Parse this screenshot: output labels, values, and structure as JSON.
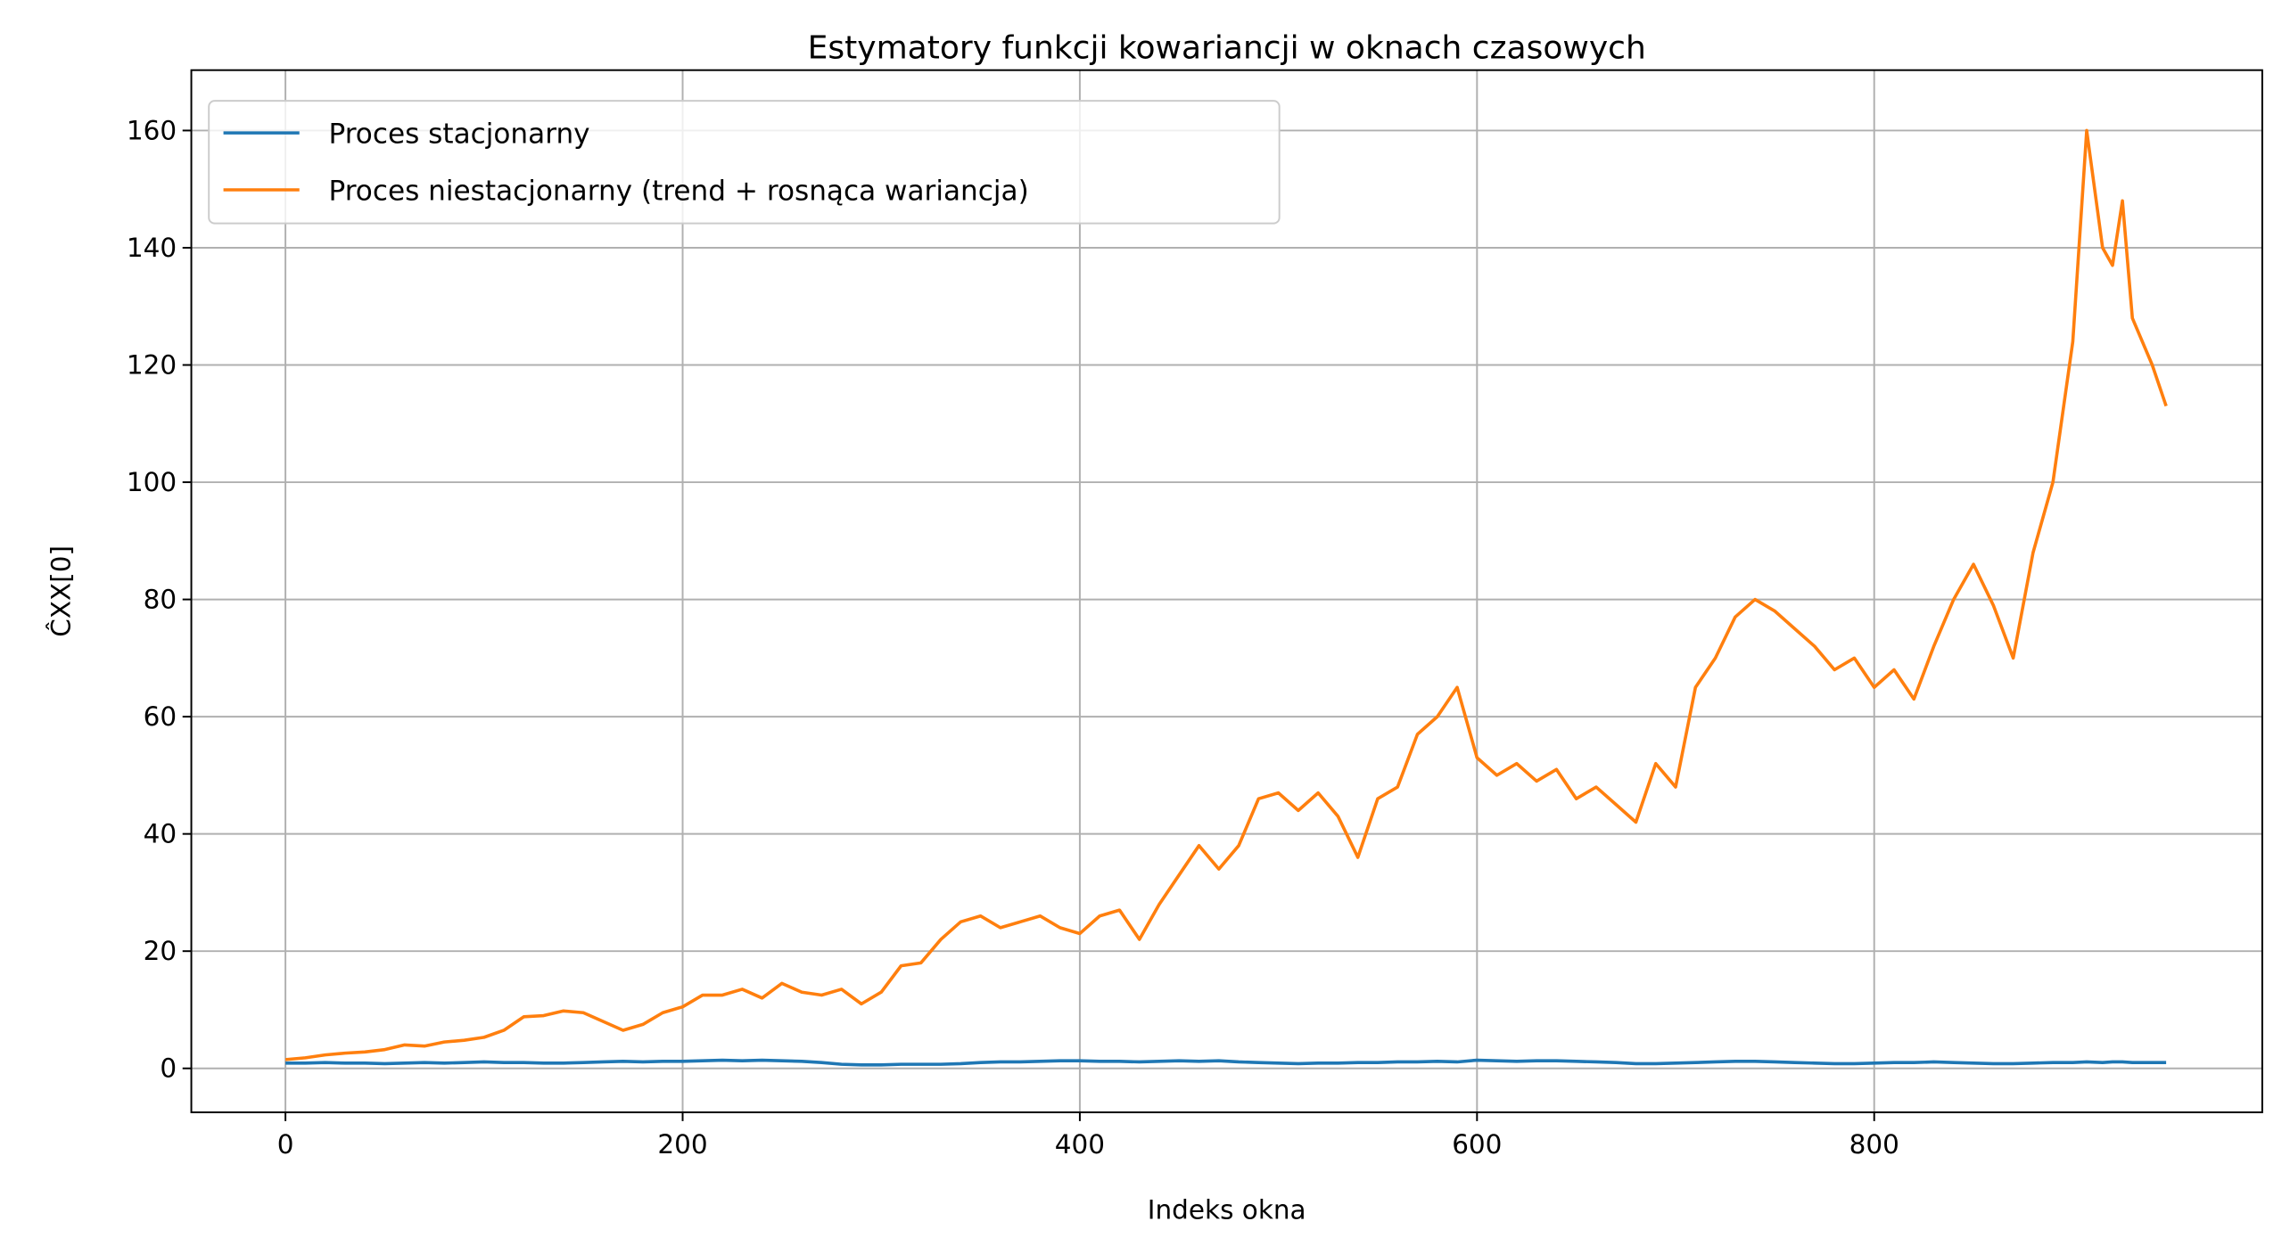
{
  "chart_data": {
    "type": "line",
    "title": "Estymatory funkcji kowariancji w oknach czasowych",
    "x_label": "Indeks okna",
    "y_label": "ĈXX[0]",
    "x": [
      0,
      10,
      20,
      30,
      40,
      50,
      60,
      70,
      80,
      90,
      100,
      110,
      120,
      130,
      140,
      150,
      160,
      170,
      180,
      190,
      200,
      210,
      220,
      230,
      240,
      250,
      260,
      270,
      280,
      290,
      300,
      310,
      320,
      330,
      340,
      350,
      360,
      370,
      380,
      390,
      400,
      410,
      420,
      430,
      440,
      450,
      460,
      470,
      480,
      490,
      500,
      510,
      520,
      530,
      540,
      550,
      560,
      570,
      580,
      590,
      600,
      610,
      620,
      630,
      640,
      650,
      660,
      670,
      680,
      690,
      700,
      710,
      720,
      730,
      740,
      750,
      760,
      770,
      780,
      790,
      800,
      810,
      820,
      830,
      840,
      850,
      860,
      870,
      880,
      890,
      900,
      907,
      915,
      920,
      925,
      930,
      940,
      947
    ],
    "series": [
      {
        "name": "Proces stacjonarny",
        "color": "#1f77b4",
        "values": [
          0.9,
          0.9,
          1.0,
          0.9,
          0.9,
          0.8,
          0.9,
          1.0,
          0.9,
          1.0,
          1.1,
          1.0,
          1.0,
          0.9,
          0.9,
          1.0,
          1.1,
          1.2,
          1.1,
          1.2,
          1.2,
          1.3,
          1.4,
          1.3,
          1.4,
          1.3,
          1.2,
          1.0,
          0.7,
          0.6,
          0.6,
          0.7,
          0.7,
          0.7,
          0.8,
          1.0,
          1.1,
          1.1,
          1.2,
          1.3,
          1.3,
          1.2,
          1.2,
          1.1,
          1.2,
          1.3,
          1.2,
          1.3,
          1.1,
          1.0,
          0.9,
          0.8,
          0.9,
          0.9,
          1.0,
          1.0,
          1.1,
          1.1,
          1.2,
          1.1,
          1.4,
          1.3,
          1.2,
          1.3,
          1.3,
          1.2,
          1.1,
          1.0,
          0.8,
          0.8,
          0.9,
          1.0,
          1.1,
          1.2,
          1.2,
          1.1,
          1.0,
          0.9,
          0.8,
          0.8,
          0.9,
          1.0,
          1.0,
          1.1,
          1.0,
          0.9,
          0.8,
          0.8,
          0.9,
          1.0,
          1.0,
          1.1,
          1.0,
          1.1,
          1.1,
          1.0,
          1.0,
          1.0
        ]
      },
      {
        "name": "Proces niestacjonarny (trend + rosnąca wariancja)",
        "color": "#ff7f0e",
        "values": [
          1.5,
          1.8,
          2.3,
          2.6,
          2.8,
          3.2,
          4,
          3.8,
          4.5,
          4.8,
          5.3,
          6.5,
          8.8,
          9,
          9.8,
          9.5,
          8,
          6.5,
          7.5,
          9.5,
          10.5,
          12.5,
          12.5,
          13.5,
          12,
          14.5,
          13,
          12.5,
          13.5,
          11,
          13,
          17.5,
          18,
          22,
          25,
          26,
          24,
          25,
          26,
          24,
          23,
          26,
          27,
          22,
          28,
          33,
          38,
          34,
          38,
          46,
          47,
          44,
          47,
          43,
          36,
          46,
          48,
          57,
          60,
          65,
          53,
          50,
          52,
          49,
          51,
          46,
          48,
          45,
          42,
          52,
          48,
          65,
          70,
          77,
          80,
          78,
          75,
          72,
          68,
          70,
          65,
          68,
          63,
          72,
          80,
          86,
          79,
          70,
          88,
          100,
          124,
          160,
          140,
          137,
          148,
          128,
          120,
          113
        ]
      }
    ],
    "xlim": [
      -47.4,
      995.4
    ],
    "ylim": [
      -7.5,
      170.3
    ],
    "xticks": [
      0,
      200,
      400,
      600,
      800
    ],
    "yticks": [
      0,
      20,
      40,
      60,
      80,
      100,
      120,
      140,
      160
    ],
    "grid": true,
    "legend": "upper left"
  }
}
